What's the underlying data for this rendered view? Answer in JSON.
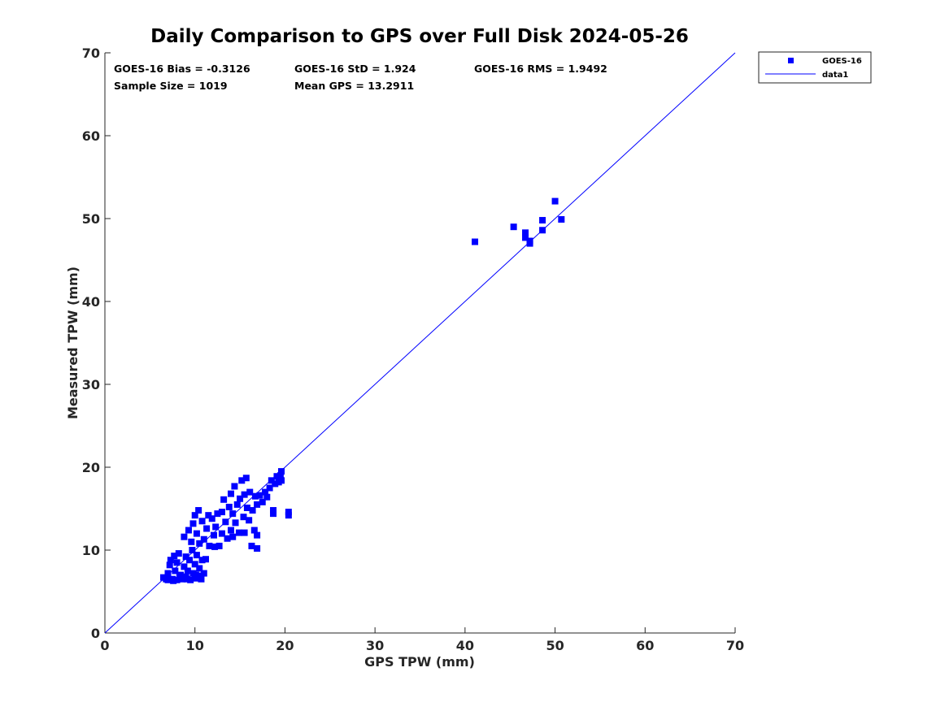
{
  "chart_data": {
    "type": "scatter",
    "title": "Daily Comparison to GPS over Full Disk 2024-05-26",
    "xlabel": "GPS TPW (mm)",
    "ylabel": "Measured TPW (mm)",
    "xlim": [
      0,
      70
    ],
    "ylim": [
      0,
      70
    ],
    "xticks": [
      "0",
      "10",
      "20",
      "30",
      "40",
      "50",
      "60",
      "70"
    ],
    "yticks": [
      "0",
      "10",
      "20",
      "30",
      "40",
      "50",
      "60",
      "70"
    ],
    "grid": false,
    "legend_position": "outside-top-right",
    "stats": [
      "GOES-16 Bias = -0.3126",
      "GOES-16 StD = 1.924",
      "GOES-16 RMS = 1.9492",
      "Sample Size = 1019",
      "Mean GPS = 13.2911"
    ],
    "series": [
      {
        "name": "GOES-16",
        "marker": "square",
        "color": "#0000ff",
        "points": [
          [
            6.5,
            6.7
          ],
          [
            7,
            6.4
          ],
          [
            7,
            7.2
          ],
          [
            7.2,
            8.2
          ],
          [
            7.3,
            8.8
          ],
          [
            7.5,
            6.5
          ],
          [
            7.7,
            9.3
          ],
          [
            7.8,
            7.5
          ],
          [
            8,
            6.4
          ],
          [
            8,
            8.5
          ],
          [
            8.2,
            9.6
          ],
          [
            8.4,
            7
          ],
          [
            8.6,
            6.5
          ],
          [
            8.8,
            8
          ],
          [
            9,
            9.2
          ],
          [
            9,
            6.8
          ],
          [
            9.2,
            7.5
          ],
          [
            9.4,
            8.8
          ],
          [
            9.5,
            6.4
          ],
          [
            9.7,
            10
          ],
          [
            9.8,
            7.2
          ],
          [
            10,
            6.6
          ],
          [
            10,
            8.3
          ],
          [
            10.2,
            9.4
          ],
          [
            10.4,
            6.9
          ],
          [
            10.5,
            7.8
          ],
          [
            10.7,
            6.5
          ],
          [
            10.8,
            8.8
          ],
          [
            11,
            7.2
          ],
          [
            11.2,
            8.9
          ],
          [
            7.6,
            6.3
          ],
          [
            8.3,
            6.8
          ],
          [
            9.1,
            6.5
          ],
          [
            10.1,
            7
          ],
          [
            6.8,
            6.5
          ],
          [
            8.8,
            11.6
          ],
          [
            9.3,
            12.4
          ],
          [
            9.6,
            11
          ],
          [
            9.8,
            13.2
          ],
          [
            10,
            14.2
          ],
          [
            10.2,
            12
          ],
          [
            10.4,
            14.8
          ],
          [
            10.5,
            10.8
          ],
          [
            10.8,
            13.5
          ],
          [
            11,
            11.3
          ],
          [
            11.3,
            12.6
          ],
          [
            11.6,
            10.5
          ],
          [
            11.9,
            13.8
          ],
          [
            12.1,
            11.8
          ],
          [
            12.3,
            12.8
          ],
          [
            12.5,
            14.4
          ],
          [
            12.7,
            10.5
          ],
          [
            13,
            12
          ],
          [
            13.2,
            16.1
          ],
          [
            13.4,
            13.4
          ],
          [
            13.6,
            11.4
          ],
          [
            13.8,
            15.2
          ],
          [
            14,
            16.8
          ],
          [
            14,
            12.4
          ],
          [
            14.2,
            14.4
          ],
          [
            14.4,
            17.7
          ],
          [
            14.5,
            13.3
          ],
          [
            14.7,
            15.5
          ],
          [
            14.9,
            12.1
          ],
          [
            15,
            16.2
          ],
          [
            15.2,
            18.4
          ],
          [
            15.4,
            14
          ],
          [
            15.5,
            12.1
          ],
          [
            15.7,
            18.7
          ],
          [
            15.8,
            15.1
          ],
          [
            16,
            13.6
          ],
          [
            16.1,
            17
          ],
          [
            16.3,
            10.5
          ],
          [
            16.4,
            14.8
          ],
          [
            16.6,
            12.4
          ],
          [
            16.7,
            16.5
          ],
          [
            16.9,
            15.5
          ],
          [
            17.2,
            16.6
          ],
          [
            17.5,
            15.8
          ],
          [
            17.8,
            17
          ],
          [
            18,
            16.4
          ],
          [
            18.3,
            17.5
          ],
          [
            18.5,
            18.4
          ],
          [
            18.7,
            14.8
          ],
          [
            18.7,
            14.4
          ],
          [
            18.9,
            18
          ],
          [
            19.1,
            18.9
          ],
          [
            19.3,
            18.2
          ],
          [
            19.5,
            19
          ],
          [
            19.6,
            18.4
          ],
          [
            19.6,
            19.5
          ],
          [
            16.9,
            11.8
          ],
          [
            16.9,
            10.2
          ],
          [
            20.4,
            14.6
          ],
          [
            20.4,
            14.2
          ],
          [
            12.2,
            10.4
          ],
          [
            11.5,
            14.2
          ],
          [
            13,
            14.6
          ],
          [
            14.2,
            11.6
          ],
          [
            15.5,
            16.7
          ],
          [
            41.1,
            47.2
          ],
          [
            45.4,
            49.0
          ],
          [
            46.7,
            48.3
          ],
          [
            46.7,
            47.7
          ],
          [
            47.2,
            47.0
          ],
          [
            47.2,
            47.3
          ],
          [
            48.6,
            49.8
          ],
          [
            48.6,
            48.6
          ],
          [
            50.0,
            52.1
          ],
          [
            50.7,
            49.9
          ]
        ]
      },
      {
        "name": "data1",
        "type": "line",
        "color": "#0000ff",
        "points": [
          [
            0,
            0
          ],
          [
            70,
            70
          ]
        ]
      }
    ]
  }
}
